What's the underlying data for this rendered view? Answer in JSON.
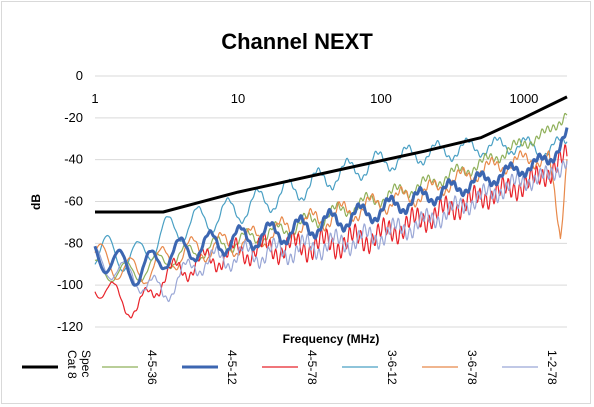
{
  "chart_data": {
    "type": "line",
    "title": "Channel NEXT",
    "xlabel": "Frequency (MHz)",
    "ylabel": "dB",
    "x_scale": "log",
    "xlim": [
      1,
      2000
    ],
    "ylim": [
      -120,
      0
    ],
    "x_ticks": [
      1,
      10,
      100,
      1000
    ],
    "x_tick_labels": [
      "1",
      "10",
      "100",
      "1000"
    ],
    "y_ticks": [
      0,
      -20,
      -40,
      -60,
      -80,
      -100,
      -120
    ],
    "y_tick_labels": [
      "0",
      "-20",
      "-40",
      "-60",
      "-80",
      "-100",
      "-120"
    ],
    "grid": "horizontal",
    "legend_position": "bottom",
    "series": [
      {
        "name": "Cat 8 Spec",
        "color": "#000000",
        "width": 3,
        "style": "spec",
        "x": [
          1,
          2,
          3,
          5,
          10,
          20,
          50,
          100,
          200,
          500,
          1000,
          2000
        ],
        "y": [
          -65,
          -65,
          -65,
          -61,
          -55.5,
          -51,
          -45,
          -40.5,
          -36,
          -29.5,
          -20,
          -10
        ]
      },
      {
        "name": "4-5-36",
        "color": "#8fb05a",
        "width": 1.2,
        "style": "noisy",
        "x": [
          1,
          2,
          3,
          5,
          10,
          20,
          50,
          100,
          200,
          500,
          1000,
          1500,
          2000
        ],
        "y": [
          -93,
          -94,
          -88,
          -84,
          -79,
          -74,
          -65,
          -58,
          -52,
          -42,
          -32,
          -27,
          -17
        ],
        "osc": 5,
        "noise": 1.5
      },
      {
        "name": "4-5-12",
        "color": "#3c66b1",
        "width": 3,
        "style": "noisy",
        "x": [
          1,
          2,
          3,
          5,
          10,
          20,
          50,
          100,
          200,
          500,
          1000,
          1500,
          2000
        ],
        "y": [
          -85,
          -94,
          -86,
          -82,
          -78,
          -75,
          -69,
          -64,
          -58,
          -50,
          -44,
          -40,
          -28
        ],
        "osc": 7,
        "noise": 1.2
      },
      {
        "name": "4-5-78",
        "color": "#e8232a",
        "width": 1.2,
        "style": "noisy",
        "x": [
          1,
          2,
          3,
          5,
          10,
          20,
          50,
          100,
          200,
          500,
          1000,
          1500,
          2000
        ],
        "y": [
          -99,
          -112,
          -96,
          -90,
          -84,
          -82,
          -80,
          -76,
          -68,
          -58,
          -52,
          -46,
          -38
        ],
        "osc": 6,
        "noise": 4
      },
      {
        "name": "3-6-12",
        "color": "#4aa0c4",
        "width": 1.2,
        "style": "noisy",
        "x": [
          1,
          2,
          3,
          5,
          10,
          20,
          50,
          100,
          200,
          500,
          1000,
          1500,
          2000
        ],
        "y": [
          -83,
          -87,
          -75,
          -70,
          -64,
          -57,
          -47,
          -41,
          -37,
          -34,
          -33,
          -36,
          -30
        ],
        "osc": 8,
        "noise": 1
      },
      {
        "name": "3-6-78",
        "color": "#e8894a",
        "width": 1.2,
        "style": "noisy",
        "x": [
          1,
          2,
          3,
          5,
          10,
          20,
          50,
          100,
          200,
          500,
          1000,
          1500,
          1800,
          2000
        ],
        "y": [
          -86,
          -95,
          -88,
          -83,
          -80,
          -74,
          -66,
          -61,
          -56,
          -45,
          -40,
          -40,
          -78,
          -37
        ],
        "osc": 7,
        "noise": 1.5
      },
      {
        "name": "1-2-78",
        "color": "#9aa7d6",
        "width": 1.2,
        "style": "noisy",
        "x": [
          1,
          2,
          3,
          5,
          10,
          20,
          50,
          100,
          200,
          500,
          1000,
          1500,
          2000
        ],
        "y": [
          -88,
          -97,
          -104,
          -90,
          -86,
          -84,
          -80,
          -76,
          -70,
          -58,
          -50,
          -48,
          -40
        ],
        "osc": 6,
        "noise": 3
      }
    ],
    "legend_labels": [
      {
        "line1": "Cat 8",
        "line2": "Spec"
      },
      {
        "line1": "4-5-36",
        "line2": ""
      },
      {
        "line1": "4-5-12",
        "line2": ""
      },
      {
        "line1": "4-5-78",
        "line2": ""
      },
      {
        "line1": "3-6-12",
        "line2": ""
      },
      {
        "line1": "3-6-78",
        "line2": ""
      },
      {
        "line1": "1-2-78",
        "line2": ""
      }
    ]
  }
}
